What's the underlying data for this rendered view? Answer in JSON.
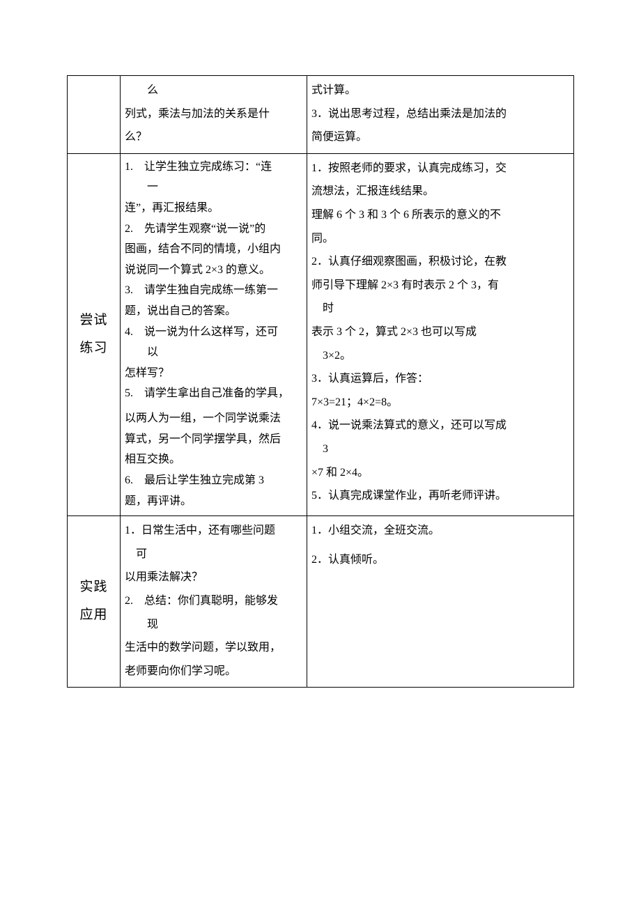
{
  "row_top": {
    "mid": {
      "l1": "　么",
      "l2": "列式，乘法与加法的关系是什",
      "l3": "么？"
    },
    "right": {
      "l1": "式计算。",
      "l2": "3．说出思考过程，总结出乘法是加法的",
      "l3": "简便运算。"
    }
  },
  "row_try": {
    "label_l1": "尝试",
    "label_l2": "练习",
    "mid": {
      "l1": "1.　让学生独立完成练习：“连",
      "l1b": "一",
      "l2": "连”，再汇报结果。",
      "l3": "2.　先请学生观察“说一说”的",
      "l3b": "图画，结合不同的情境，小组内",
      "l3c": "说说同一个算式 2×3 的意义。",
      "l4": "3.　请学生独自完成练一练第一",
      "l4b": "题，说出自己的答案。",
      "l5": "4.　说一说为什么这样写，还可",
      "l5b": "以",
      "l5c": "怎样写？",
      "l6": "5.　请学生拿出自己准备的学具，",
      "l7": "以两人为一组，一个同学说乘法",
      "l7b": "算式，另一个同学摆学具，然后",
      "l7c": "相互交换。",
      "l8": "6.　最后让学生独立完成第 3",
      "l8b": "题，再评讲。"
    },
    "right": {
      "l1": "1．按照老师的要求，认真完成练习，交",
      "l2": "流想法，汇报连线结果。",
      "l3": "理解 6 个 3 和 3 个 6 所表示的意义的不",
      "l4": "同。",
      "l5": "2．认真仔细观察图画，积极讨论，在教",
      "l6": "师引导下理解 2×3 有时表示 2 个 3，有",
      "l6b": "时",
      "l7": "表示 3 个 2，算式 2×3 也可以写成",
      "l7b": "3×2。",
      "l8": "3．认真运算后，作答：",
      "l9": "7×3=21；4×2=8。",
      "l10": "4．说一说乘法算式的意义，还可以写成",
      "l10b": "3",
      "l11": "×7 和 2×4。",
      "l12": "5．认真完成课堂作业，再听老师评讲。"
    }
  },
  "row_apply": {
    "label_l1": "实践",
    "label_l2": "应用",
    "mid": {
      "l1": "1．日常生活中，还有哪些问题",
      "l1b": "可",
      "l2": "以用乘法解决？",
      "l3": "2.　总结：你们真聪明，能够发",
      "l3b": "现",
      "l4": "生活中的数学问题，学以致用，",
      "l5": "老师要向你们学习呢。"
    },
    "right": {
      "l1": "1．小组交流，全班交流。",
      "l2": "2．认真倾听。"
    }
  }
}
